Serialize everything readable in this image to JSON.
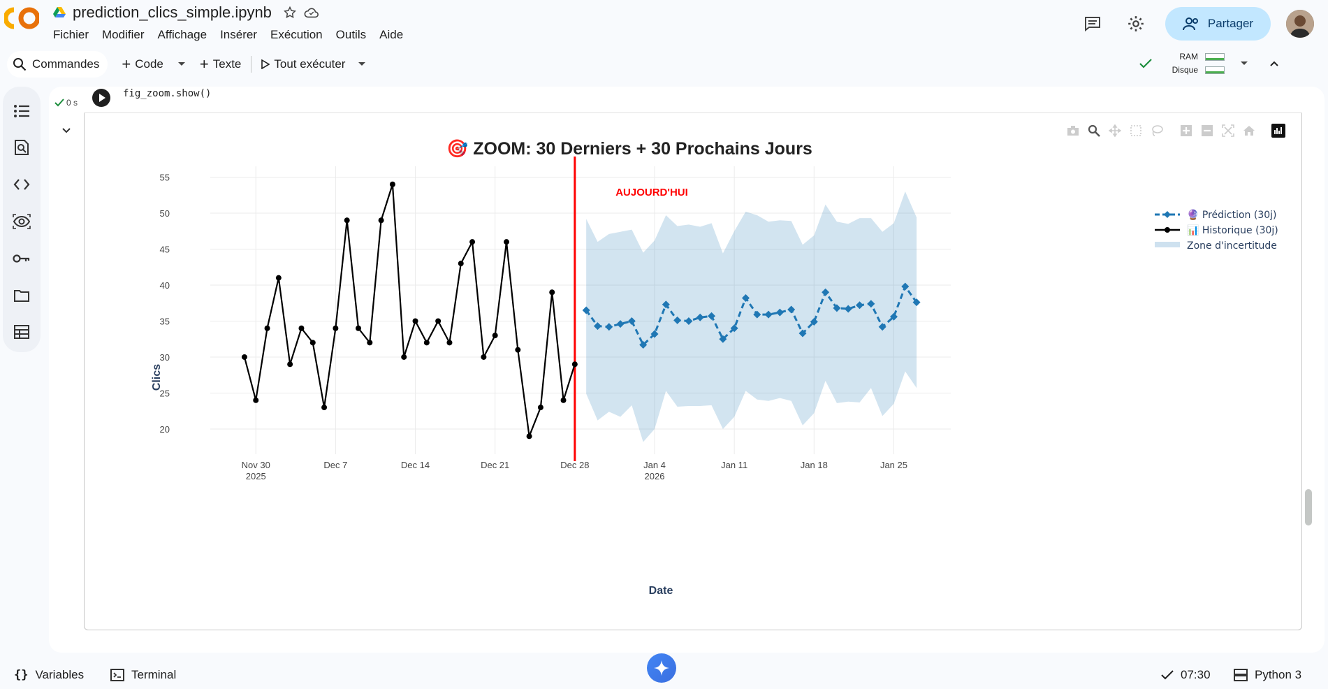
{
  "app": {
    "notebook_title": "prediction_clics_simple.ipynb",
    "menu": [
      "Fichier",
      "Modifier",
      "Affichage",
      "Insérer",
      "Exécution",
      "Outils",
      "Aide"
    ],
    "share_label": "Partager"
  },
  "toolbar": {
    "commands_label": "Commandes",
    "code_label": "Code",
    "text_label": "Texte",
    "run_all_label": "Tout exécuter",
    "ram_label": "RAM",
    "disk_label": "Disque"
  },
  "cell": {
    "code_line": "fig_zoom.show()",
    "exec_time": "0 s",
    "more_label": "..."
  },
  "statusbar": {
    "variables_label": "Variables",
    "terminal_label": "Terminal",
    "time": "07:30",
    "kernel": "Python 3"
  },
  "colors": {
    "history": "#000000",
    "prediction": "#1f77b4",
    "uncertainty": "rgba(31,119,180,0.2)",
    "today_line": "#ff0000",
    "share_bg": "#c2e7ff"
  },
  "chart_data": {
    "type": "line",
    "title": "🎯 ZOOM: 30 Derniers + 30 Prochains Jours",
    "xlabel": "Date",
    "ylabel": "Clics",
    "ylim": [
      16.5,
      56.5
    ],
    "y_ticks": [
      20,
      25,
      30,
      35,
      40,
      45,
      50,
      55
    ],
    "x_ticks": [
      {
        "date": "2025-11-30",
        "label1": "Nov 30",
        "label2": "2025"
      },
      {
        "date": "2025-12-07",
        "label1": "Dec 7",
        "label2": ""
      },
      {
        "date": "2025-12-14",
        "label1": "Dec 14",
        "label2": ""
      },
      {
        "date": "2025-12-21",
        "label1": "Dec 21",
        "label2": ""
      },
      {
        "date": "2025-12-28",
        "label1": "Dec 28",
        "label2": ""
      },
      {
        "date": "2026-01-04",
        "label1": "Jan 4",
        "label2": "2026"
      },
      {
        "date": "2026-01-11",
        "label1": "Jan 11",
        "label2": ""
      },
      {
        "date": "2026-01-18",
        "label1": "Jan 18",
        "label2": ""
      },
      {
        "date": "2026-01-25",
        "label1": "Jan 25",
        "label2": ""
      }
    ],
    "xlim": [
      "2025-11-26",
      "2026-01-30"
    ],
    "grid": true,
    "legend_position": "top-right",
    "today": {
      "date": "2025-12-28",
      "label": "AUJOURD'HUI"
    },
    "series": [
      {
        "name": "📊 Historique (30j)",
        "start": "2025-11-29",
        "values": [
          30,
          24,
          34,
          41,
          29,
          34,
          32,
          23,
          34,
          49,
          34,
          32,
          49,
          54,
          30,
          35,
          32,
          35,
          32,
          43,
          46,
          30,
          33,
          46,
          31,
          19,
          23,
          39,
          24,
          29
        ]
      },
      {
        "name": "🔮 Prédiction (30j)",
        "start": "2025-12-29",
        "values": [
          36.5,
          34.3,
          34.2,
          34.6,
          35.0,
          31.7,
          33.2,
          37.3,
          35.1,
          35.0,
          35.5,
          35.7,
          32.5,
          34.0,
          38.2,
          35.9,
          35.9,
          36.2,
          36.6,
          33.3,
          34.9,
          39.0,
          36.8,
          36.7,
          37.2,
          37.4,
          34.2,
          35.6,
          39.8,
          37.6
        ]
      }
    ],
    "uncertainty": {
      "name": "Zone d'incertitude",
      "start": "2025-12-29",
      "upper": [
        49.2,
        46.0,
        47.1,
        47.4,
        47.7,
        44.5,
        46.2,
        49.7,
        48.2,
        48.4,
        48.1,
        48.6,
        44.4,
        47.5,
        50.2,
        49.7,
        48.8,
        49.0,
        48.9,
        45.6,
        46.9,
        51.2,
        48.8,
        48.5,
        49.3,
        49.3,
        47.4,
        48.6,
        53.0,
        49.4
      ],
      "lower": [
        24.9,
        21.2,
        22.4,
        21.7,
        23.3,
        18.2,
        20.0,
        25.3,
        23.1,
        23.2,
        23.2,
        23.3,
        20.0,
        21.7,
        25.3,
        24.1,
        23.9,
        24.3,
        23.9,
        20.5,
        22.2,
        26.7,
        23.6,
        23.8,
        23.7,
        25.7,
        21.8,
        23.5,
        28.0,
        25.7
      ]
    }
  }
}
